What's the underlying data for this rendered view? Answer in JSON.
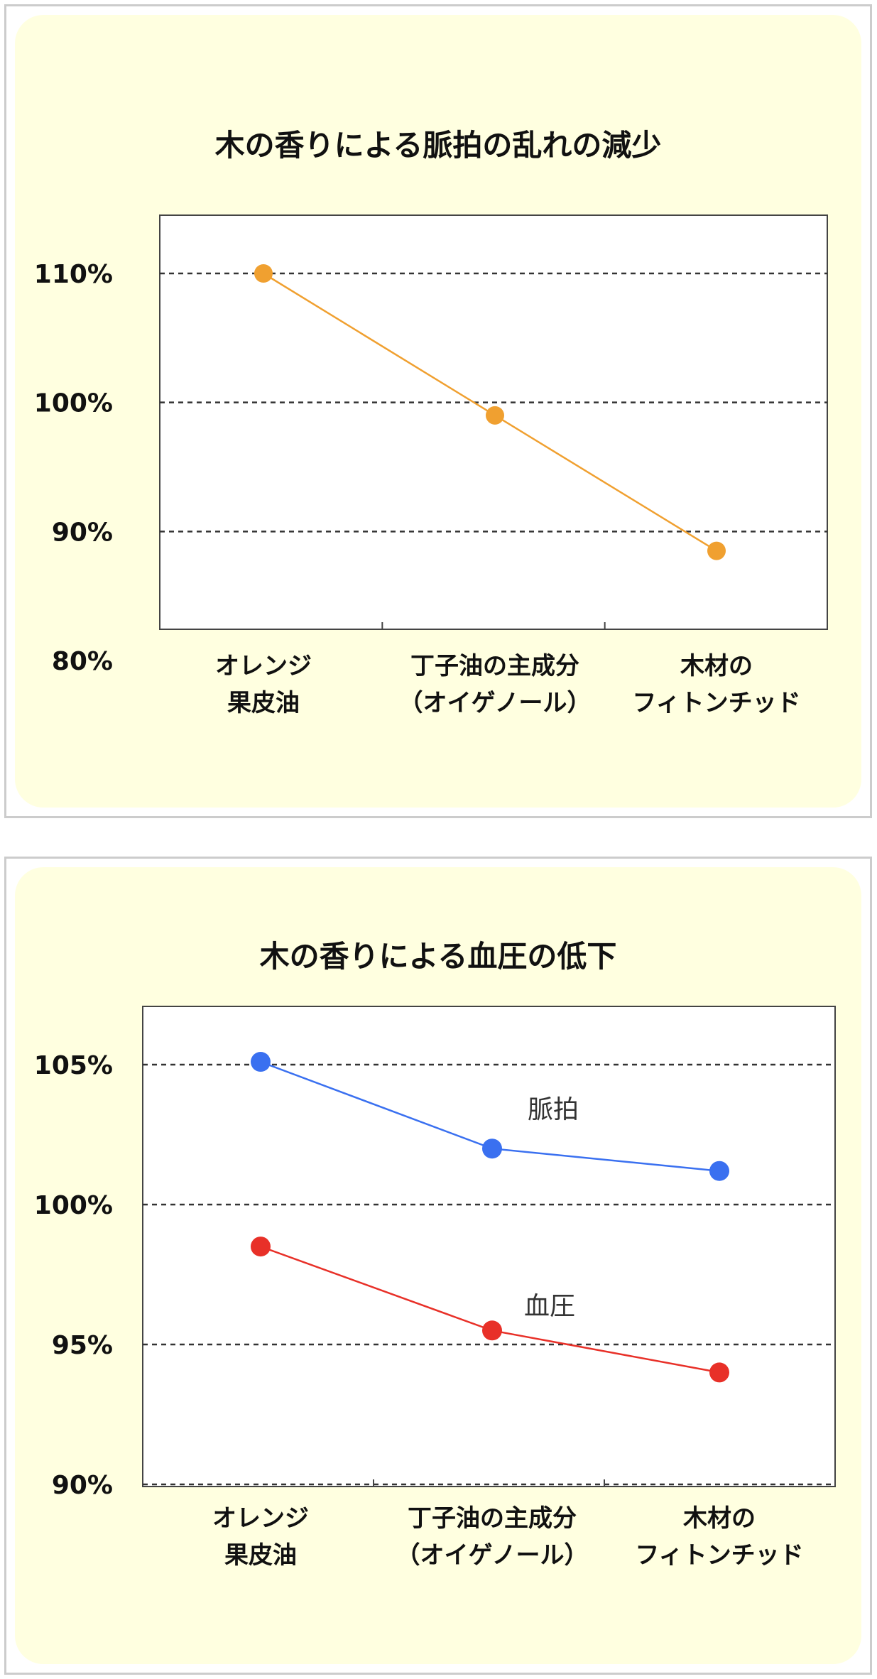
{
  "chart_data": [
    {
      "type": "line",
      "title": "木の香りによる脈拍の乱れの減少",
      "categories": [
        [
          "オレンジ",
          "果皮油"
        ],
        [
          "丁子油の主成分",
          "（オイゲノール）"
        ],
        [
          "木材の",
          "フィトンチッド"
        ]
      ],
      "yticks": [
        "110%",
        "100%",
        "90%",
        "80%"
      ],
      "ylim": [
        80,
        115
      ],
      "grid": "dashed",
      "series": [
        {
          "values": [
            110,
            99,
            88.5
          ],
          "color": "#f0a030"
        }
      ]
    },
    {
      "type": "line",
      "title": "木の香りによる血圧の低下",
      "categories": [
        [
          "オレンジ",
          "果皮油"
        ],
        [
          "丁子油の主成分",
          "（オイゲノール）"
        ],
        [
          "木材の",
          "フィトンチッド"
        ]
      ],
      "yticks": [
        "105%",
        "100%",
        "95%",
        "90%"
      ],
      "ylim": [
        90,
        107
      ],
      "grid": "dashed",
      "series": [
        {
          "name": "脈拍",
          "values": [
            105.1,
            102,
            101.2
          ],
          "color": "#3a70f0"
        },
        {
          "name": "血圧",
          "values": [
            98.5,
            95.5,
            94
          ],
          "color": "#e83028"
        }
      ]
    }
  ]
}
